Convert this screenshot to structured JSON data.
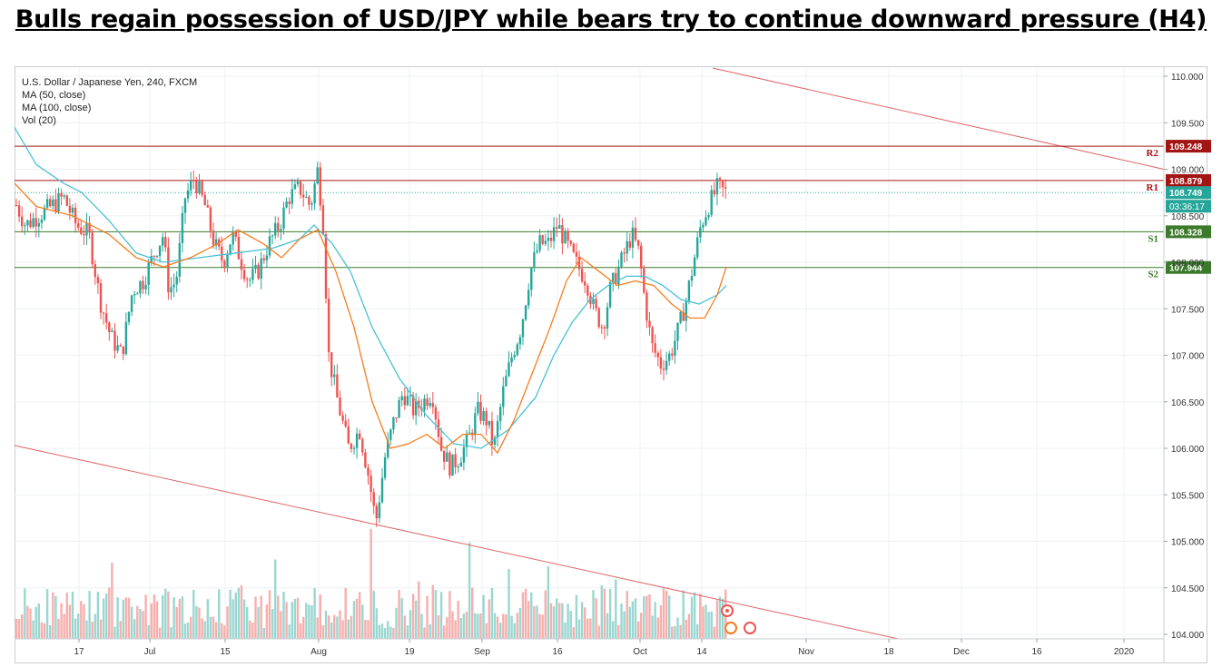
{
  "headline": "Bulls regain possession of USD/JPY while bears try to continue downward pressure (H4)",
  "legend": {
    "symbol": "U.S. Dollar / Japanese Yen, 240, FXCM",
    "ma50": "MA (50, close)",
    "ma100": "MA (100, close)",
    "vol": "Vol (20)"
  },
  "colors": {
    "up": "#26a69a",
    "down": "#ef5350",
    "ma50": "#f57c1f",
    "ma100": "#49c0d6",
    "resistance": "#a31515",
    "support": "#3a7a2a",
    "trendline": "#e06666",
    "current": "#26a69a"
  },
  "chart_data": {
    "type": "candlestick",
    "y_ticks": [
      "104.000",
      "104.500",
      "105.000",
      "105.500",
      "106.000",
      "106.500",
      "107.000",
      "107.500",
      "108.000",
      "108.500",
      "109.000",
      "109.500",
      "110.000"
    ],
    "x_ticks": [
      "17",
      "Jul",
      "15",
      "Aug",
      "19",
      "Sep",
      "16",
      "Oct",
      "14",
      "Nov",
      "18",
      "Dec",
      "16",
      "2020"
    ],
    "ylim": [
      104.0,
      110.0
    ],
    "levels": [
      {
        "label": "R2",
        "value": "109.248",
        "type": "resistance"
      },
      {
        "label": "R1",
        "value": "108.879",
        "type": "resistance"
      },
      {
        "label": "S1",
        "value": "108.328",
        "type": "support"
      },
      {
        "label": "S2",
        "value": "107.944",
        "type": "support"
      }
    ],
    "current_price": "108.749",
    "countdown": "03:36:17",
    "price_path": [
      [
        108.3,
        1
      ],
      [
        108.7,
        14
      ],
      [
        108.4,
        28
      ],
      [
        108.5,
        42
      ],
      [
        108.6,
        56
      ],
      [
        108.7,
        70
      ],
      [
        108.4,
        84
      ],
      [
        108.3,
        98
      ],
      [
        107.6,
        110
      ],
      [
        107.2,
        122
      ],
      [
        107.0,
        134
      ],
      [
        107.7,
        146
      ],
      [
        107.8,
        158
      ],
      [
        108.1,
        170
      ],
      [
        108.3,
        180
      ],
      [
        107.7,
        186
      ],
      [
        107.8,
        194
      ],
      [
        108.7,
        204
      ],
      [
        108.9,
        214
      ],
      [
        108.6,
        226
      ],
      [
        108.2,
        236
      ],
      [
        108.0,
        246
      ],
      [
        108.3,
        256
      ],
      [
        108.0,
        266
      ],
      [
        107.8,
        274
      ],
      [
        107.9,
        284
      ],
      [
        108.2,
        296
      ],
      [
        108.4,
        308
      ],
      [
        108.7,
        318
      ],
      [
        108.8,
        330
      ],
      [
        108.6,
        342
      ],
      [
        109.0,
        350
      ],
      [
        108.4,
        356
      ],
      [
        107.0,
        362
      ],
      [
        106.5,
        372
      ],
      [
        106.0,
        384
      ],
      [
        106.2,
        396
      ],
      [
        105.7,
        406
      ],
      [
        105.2,
        414
      ],
      [
        105.9,
        424
      ],
      [
        106.3,
        434
      ],
      [
        106.6,
        444
      ],
      [
        106.4,
        456
      ],
      [
        106.5,
        466
      ],
      [
        106.6,
        476
      ],
      [
        106.0,
        486
      ],
      [
        105.8,
        496
      ],
      [
        105.9,
        506
      ],
      [
        106.1,
        516
      ],
      [
        106.4,
        526
      ],
      [
        106.3,
        536
      ],
      [
        106.0,
        544
      ],
      [
        106.6,
        554
      ],
      [
        107.0,
        564
      ],
      [
        107.3,
        574
      ],
      [
        107.9,
        584
      ],
      [
        108.2,
        594
      ],
      [
        108.2,
        604
      ],
      [
        108.4,
        614
      ],
      [
        108.2,
        624
      ],
      [
        108.0,
        634
      ],
      [
        107.8,
        646
      ],
      [
        107.5,
        654
      ],
      [
        107.3,
        664
      ],
      [
        107.7,
        672
      ],
      [
        107.9,
        680
      ],
      [
        108.1,
        688
      ],
      [
        108.3,
        696
      ],
      [
        108.1,
        704
      ],
      [
        107.6,
        710
      ],
      [
        107.1,
        718
      ],
      [
        106.9,
        728
      ],
      [
        107.0,
        738
      ],
      [
        107.3,
        748
      ],
      [
        107.6,
        756
      ],
      [
        108.0,
        764
      ],
      [
        108.4,
        772
      ],
      [
        108.6,
        780
      ],
      [
        108.8,
        790
      ],
      [
        108.75,
        800
      ]
    ],
    "ma50": [
      [
        108.85,
        16
      ],
      [
        108.6,
        40
      ],
      [
        108.5,
        80
      ],
      [
        108.3,
        120
      ],
      [
        108.05,
        150
      ],
      [
        107.95,
        180
      ],
      [
        108.05,
        210
      ],
      [
        108.2,
        240
      ],
      [
        108.35,
        262
      ],
      [
        108.2,
        290
      ],
      [
        108.05,
        310
      ],
      [
        108.25,
        330
      ],
      [
        108.35,
        350
      ],
      [
        107.9,
        370
      ],
      [
        107.3,
        390
      ],
      [
        106.5,
        410
      ],
      [
        106.0,
        430
      ],
      [
        106.05,
        450
      ],
      [
        106.15,
        470
      ],
      [
        106.0,
        490
      ],
      [
        106.15,
        510
      ],
      [
        106.15,
        530
      ],
      [
        105.95,
        548
      ],
      [
        106.3,
        566
      ],
      [
        106.8,
        586
      ],
      [
        107.3,
        606
      ],
      [
        107.8,
        624
      ],
      [
        108.05,
        640
      ],
      [
        107.9,
        660
      ],
      [
        107.75,
        680
      ],
      [
        107.8,
        700
      ],
      [
        107.75,
        720
      ],
      [
        107.55,
        740
      ],
      [
        107.4,
        760
      ],
      [
        107.4,
        776
      ],
      [
        107.65,
        790
      ],
      [
        107.95,
        800
      ]
    ],
    "ma100": [
      [
        109.45,
        16
      ],
      [
        109.05,
        40
      ],
      [
        108.85,
        70
      ],
      [
        108.75,
        90
      ],
      [
        108.45,
        120
      ],
      [
        108.1,
        150
      ],
      [
        108.0,
        180
      ],
      [
        108.05,
        220
      ],
      [
        108.1,
        260
      ],
      [
        108.15,
        300
      ],
      [
        108.25,
        330
      ],
      [
        108.4,
        346
      ],
      [
        108.2,
        366
      ],
      [
        107.9,
        386
      ],
      [
        107.3,
        410
      ],
      [
        106.75,
        440
      ],
      [
        106.35,
        470
      ],
      [
        106.05,
        500
      ],
      [
        106.0,
        530
      ],
      [
        106.2,
        560
      ],
      [
        106.55,
        590
      ],
      [
        107.0,
        610
      ],
      [
        107.35,
        630
      ],
      [
        107.6,
        650
      ],
      [
        107.75,
        670
      ],
      [
        107.85,
        690
      ],
      [
        107.85,
        710
      ],
      [
        107.75,
        730
      ],
      [
        107.6,
        750
      ],
      [
        107.55,
        770
      ],
      [
        107.65,
        790
      ],
      [
        107.75,
        800
      ]
    ]
  }
}
